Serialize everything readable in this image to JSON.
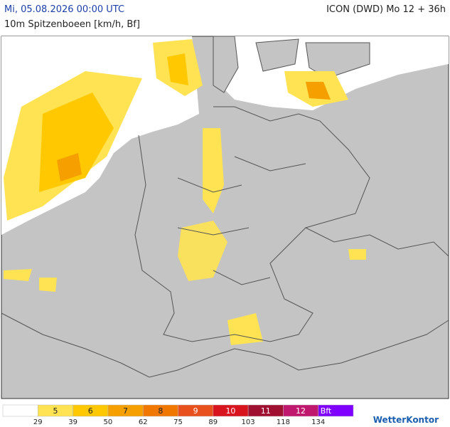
{
  "header": {
    "date": "Mi, 05.08.2026 00:00 UTC",
    "model": "ICON (DWD) Mo 12 + 36h",
    "subtitle": "10m Spitzenboeen [km/h, Bf]"
  },
  "legend": {
    "classes": [
      {
        "color": "#ffffff"
      },
      {
        "label": "5",
        "color": "#ffe352"
      },
      {
        "label": "6",
        "color": "#ffc800"
      },
      {
        "label": "7",
        "color": "#f5a000"
      },
      {
        "label": "8",
        "color": "#f07800"
      },
      {
        "label": "9",
        "color": "#e8501e"
      },
      {
        "label": "10",
        "color": "#d8141e"
      },
      {
        "label": "11",
        "color": "#a01030"
      },
      {
        "label": "12",
        "color": "#c0186e"
      },
      {
        "label": "Bft",
        "color": "#8000ff"
      }
    ],
    "thresholds": [
      29,
      39,
      50,
      62,
      75,
      89,
      103,
      118,
      134
    ]
  },
  "brand": "WetterKontor"
}
